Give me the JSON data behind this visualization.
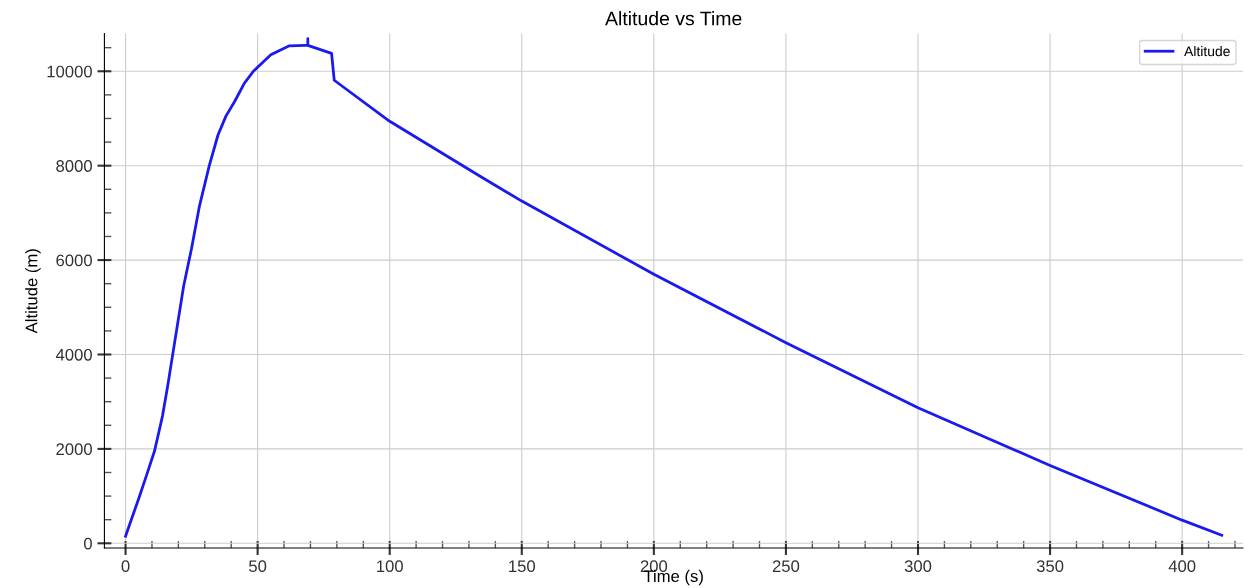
{
  "chart_data": {
    "type": "line",
    "title": "Altitude vs Time",
    "xlabel": "Time (s)",
    "ylabel": "Altitude (m)",
    "series": [
      {
        "name": "Altitude",
        "color": "#1a1aee",
        "x": [
          0,
          3,
          5,
          8,
          11,
          14,
          16,
          18,
          20,
          22,
          25,
          28,
          31.7,
          35,
          38,
          41.3,
          45,
          48.4,
          55,
          62,
          68,
          69,
          69,
          69,
          78,
          79,
          100,
          135,
          150,
          200,
          250,
          300,
          350,
          400,
          415
        ],
        "values": [
          150,
          630,
          950,
          1450,
          1960,
          2700,
          3350,
          4050,
          4750,
          5450,
          6250,
          7150,
          8000,
          8650,
          9050,
          9360,
          9750,
          10000,
          10350,
          10540,
          10550,
          10550,
          10690,
          10550,
          10380,
          9810,
          8940,
          7750,
          7250,
          5700,
          4250,
          2870,
          1650,
          490,
          170
        ]
      }
    ],
    "xlim": [
      -8,
      423
    ],
    "ylim": [
      -100,
      10800
    ],
    "xticks": [
      0,
      50,
      100,
      150,
      200,
      250,
      300,
      350,
      400
    ],
    "yticks": [
      0,
      2000,
      4000,
      6000,
      8000,
      10000
    ],
    "grid": true,
    "legend": "top right",
    "line_style": "solid",
    "marker": "none"
  }
}
